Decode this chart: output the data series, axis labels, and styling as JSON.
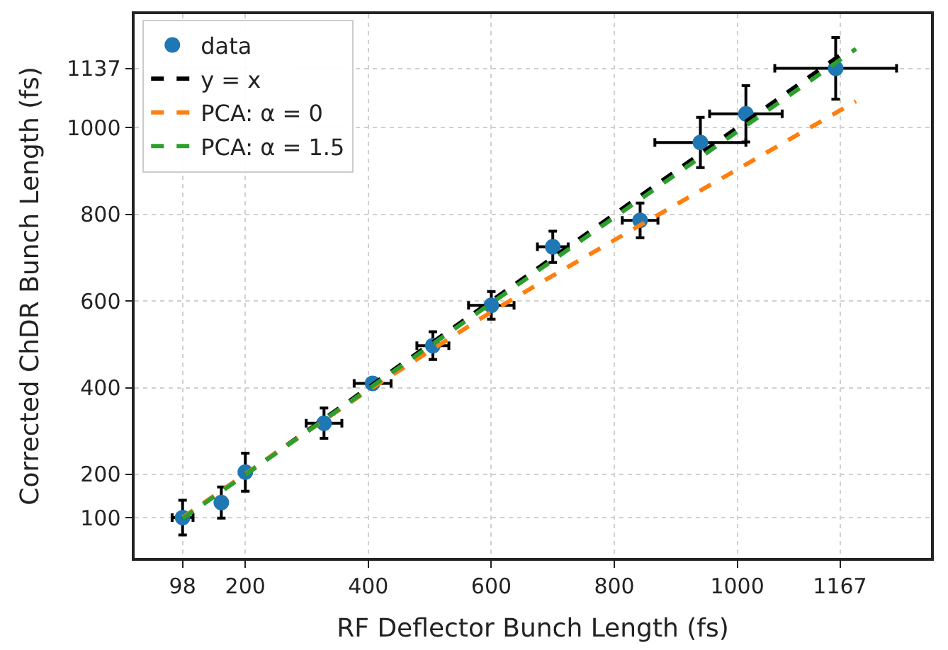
{
  "chart_data": {
    "type": "scatter",
    "xlabel": "RF Deflector Bunch Length (fs)",
    "ylabel": "Corrected ChDR Bunch Length (fs)",
    "xlim": [
      20,
      1315
    ],
    "ylim": [
      7,
      1262
    ],
    "xticks": [
      98,
      200,
      400,
      600,
      800,
      1000,
      1167
    ],
    "yticks": [
      100,
      200,
      400,
      600,
      800,
      1000,
      1137
    ],
    "grid": true,
    "legend": "top left",
    "series": [
      {
        "name": "data",
        "color": "#1f77b4",
        "marker": "circle",
        "x": [
          98,
          161,
          200,
          328,
          407,
          505,
          600,
          700,
          842,
          940,
          1014,
          1160
        ],
        "values": [
          100,
          135,
          205,
          318,
          410,
          497,
          590,
          725,
          786,
          966,
          1032,
          1137
        ],
        "errors": [
          40,
          36,
          44,
          35,
          12,
          32,
          32,
          36,
          40,
          58,
          65,
          71
        ],
        "xerrors": [
          17,
          null,
          null,
          29,
          30,
          26,
          37,
          25,
          29,
          74,
          59,
          99
        ]
      },
      {
        "name": "y = x",
        "type": "line",
        "color": "#000000",
        "line_style": "dashed",
        "x": [
          98,
          1167
        ],
        "values": [
          98,
          1167
        ]
      },
      {
        "name": "PCA: α = 0",
        "type": "line",
        "color": "#ff7f0e",
        "line_style": "dashed",
        "x": [
          98,
          250,
          400,
          600,
          675,
          842,
          1193
        ],
        "values": [
          100,
          250,
          394,
          575,
          638,
          775,
          1061
        ]
      },
      {
        "name": "PCA: α = 1.5",
        "type": "line",
        "color": "#2ca02c",
        "line_style": "dashed",
        "x": [
          98,
          1193
        ],
        "values": [
          98,
          1182
        ]
      }
    ]
  }
}
